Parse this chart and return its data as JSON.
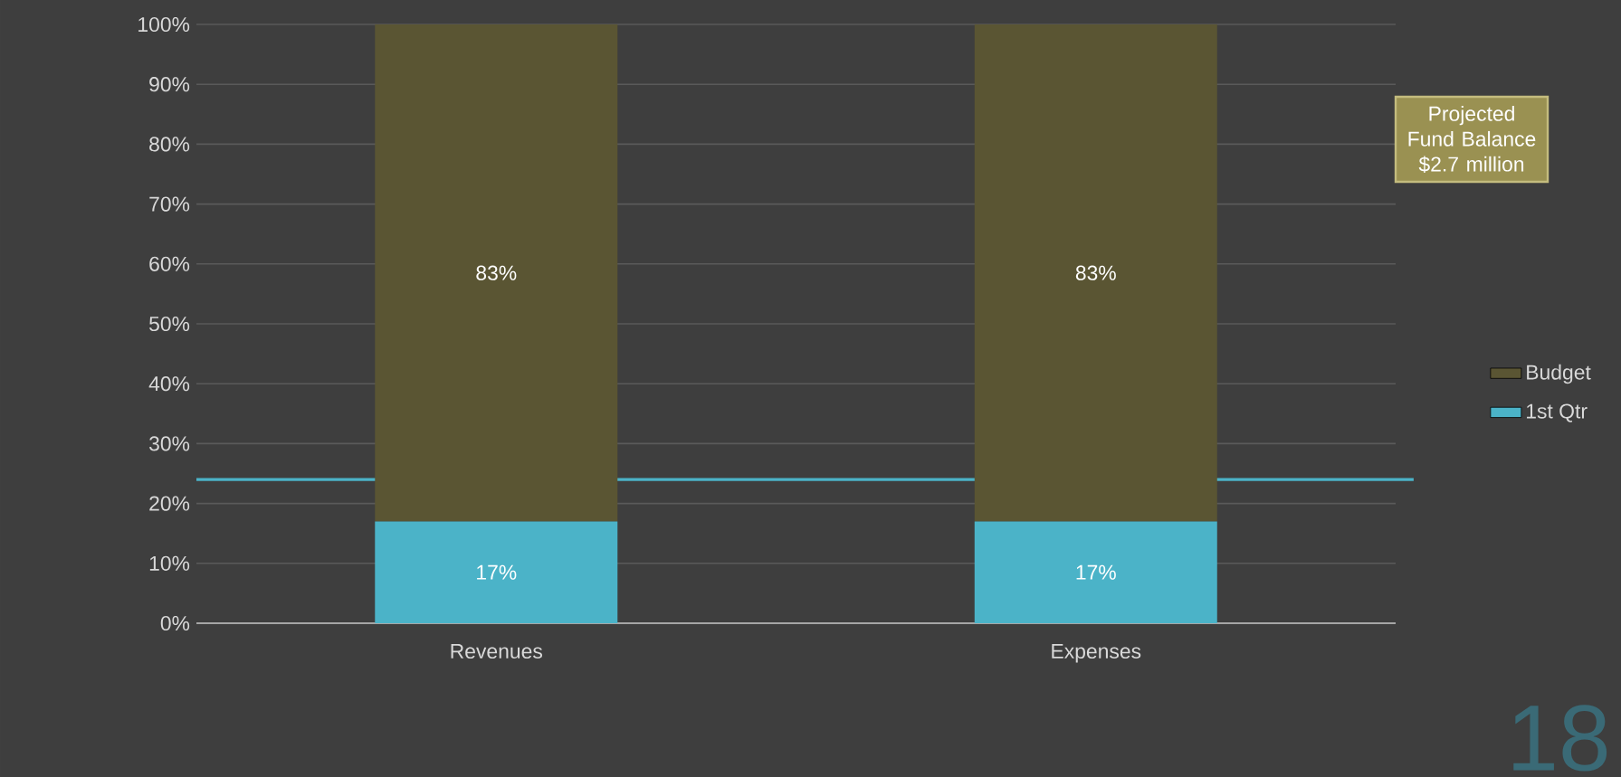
{
  "chart_data": {
    "type": "bar",
    "stacked": true,
    "categories": [
      "Revenues",
      "Expenses"
    ],
    "series": [
      {
        "name": "1st Qtr",
        "color": "#4bb3c8",
        "values": [
          17,
          17
        ],
        "value_labels": [
          "17%",
          "17%"
        ]
      },
      {
        "name": "Budget",
        "color": "#5a5533",
        "values": [
          83,
          83
        ],
        "value_labels": [
          "83%",
          "83%"
        ]
      }
    ],
    "ylim": [
      0,
      100
    ],
    "yticks": [
      {
        "value": 0,
        "label": "0%"
      },
      {
        "value": 10,
        "label": "10%"
      },
      {
        "value": 20,
        "label": "20%"
      },
      {
        "value": 30,
        "label": "30%"
      },
      {
        "value": 40,
        "label": "40%"
      },
      {
        "value": 50,
        "label": "50%"
      },
      {
        "value": 60,
        "label": "60%"
      },
      {
        "value": 70,
        "label": "70%"
      },
      {
        "value": 80,
        "label": "80%"
      },
      {
        "value": 90,
        "label": "90%"
      },
      {
        "value": 100,
        "label": "100%"
      }
    ],
    "grid": "y",
    "legend": "right",
    "ref_lines": [
      {
        "axis": "y",
        "value": 24,
        "color": "#4bb3c8"
      }
    ],
    "annotations": [
      "Projected Fund Balance $2.7 million",
      "18"
    ]
  }
}
